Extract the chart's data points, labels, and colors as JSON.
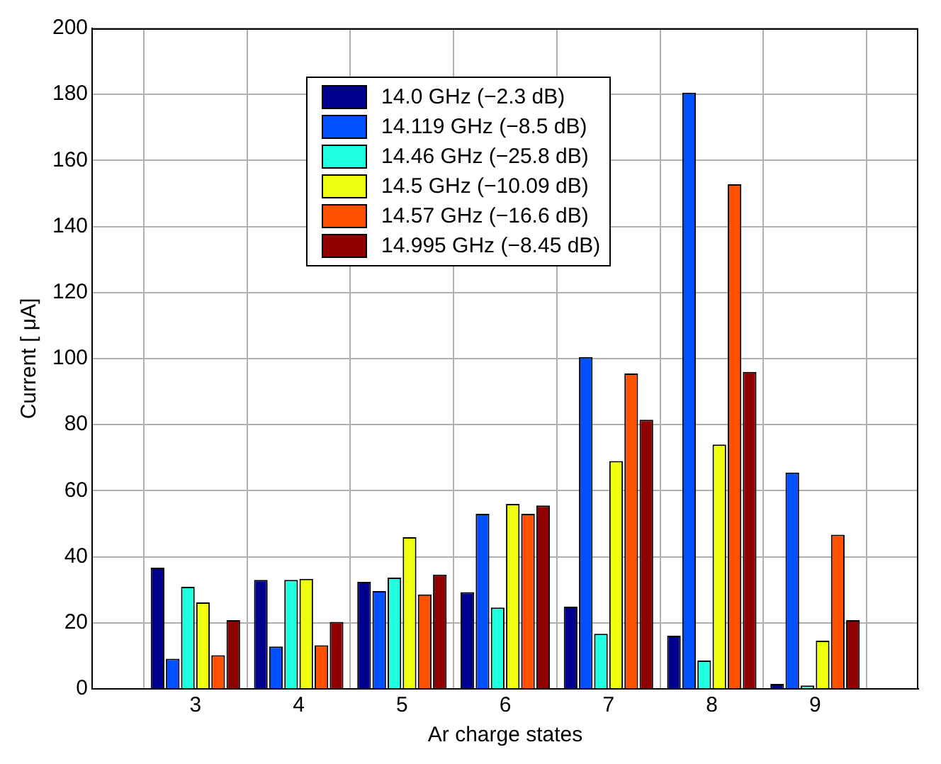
{
  "chart_data": {
    "type": "bar",
    "xlabel": "Ar charge states",
    "ylabel": "Current [ μA]",
    "x": [
      3,
      4,
      5,
      6,
      7,
      8,
      9
    ],
    "xlim": [
      2,
      10
    ],
    "xticks": [
      3,
      4,
      5,
      6,
      7,
      8,
      9
    ],
    "ylim": [
      0,
      200
    ],
    "yticks": [
      0,
      20,
      40,
      60,
      80,
      100,
      120,
      140,
      160,
      180,
      200
    ],
    "grid": true,
    "legend": "top",
    "series": [
      {
        "name": "14.0 GHz (−2.3 dB)",
        "color": "#00008f",
        "values": [
          36.7,
          33,
          32.4,
          29.3,
          24.9,
          16.1,
          1.5
        ]
      },
      {
        "name": "14.119 GHz (−8.5 dB)",
        "color": "#0050ff",
        "values": [
          9.1,
          12.8,
          29.6,
          53,
          100.5,
          180.5,
          65.5
        ]
      },
      {
        "name": "14.46 GHz (−25.8 dB)",
        "color": "#20ffdf",
        "values": [
          30.9,
          33,
          33.7,
          24.6,
          16.7,
          8.6,
          1
        ]
      },
      {
        "name": "14.5 GHz (−10.09 dB)",
        "color": "#efff10",
        "values": [
          26.2,
          33.3,
          45.9,
          56,
          69,
          74,
          14.6
        ]
      },
      {
        "name": "14.57 GHz (−16.6 dB)",
        "color": "#ff5000",
        "values": [
          10.2,
          13.2,
          28.6,
          53,
          95.5,
          152.8,
          46.7
        ]
      },
      {
        "name": "14.995 GHz (−8.45 dB)",
        "color": "#8f0000",
        "values": [
          20.8,
          20.3,
          34.6,
          55.5,
          81.5,
          96,
          20.8
        ]
      }
    ]
  }
}
